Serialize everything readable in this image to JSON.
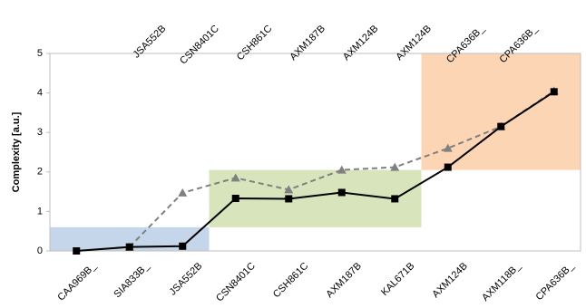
{
  "chart_data": {
    "type": "line",
    "y_label": "Complexity [a.u.]",
    "categories": [
      "CAA969B_",
      "SIA833B_",
      "JSA552B",
      "CSN8401C",
      "CSH861C",
      "AXM187B",
      "KAL671B",
      "AXM124B",
      "AXM118B_",
      "CPA636B_"
    ],
    "top_categories": [
      null,
      null,
      "JSA552B",
      "CSN8401C",
      "CSH861C",
      "AXM187B",
      "AXM124B",
      "AXM124B",
      "CPA636B_",
      "CPA636B_"
    ],
    "series": [
      {
        "color": "#808080",
        "marker": "triangle",
        "dashed": true,
        "values": [
          null,
          0.1,
          1.47,
          1.85,
          1.55,
          2.05,
          2.12,
          2.6,
          3.15,
          4.05
        ]
      },
      {
        "color": "#000000",
        "marker": "square",
        "dashed": false,
        "values": [
          0,
          0.1,
          0.12,
          1.33,
          1.32,
          1.48,
          1.32,
          2.12,
          3.15,
          4.03
        ]
      }
    ],
    "regions": [
      {
        "from": 0,
        "to": 2,
        "ylim": [
          0,
          0.6
        ],
        "color": "#c5d5ea"
      },
      {
        "from": 3,
        "to": 6,
        "ylim": [
          0.6,
          2.05
        ],
        "color": "#d8e4bc"
      },
      {
        "from": 7,
        "to": 9,
        "ylim": [
          2.05,
          5
        ],
        "color": "#fcd5b5"
      }
    ],
    "ylim": [
      0,
      5
    ],
    "yticks": [
      0,
      1,
      2,
      3,
      4,
      5
    ],
    "grid": false
  }
}
